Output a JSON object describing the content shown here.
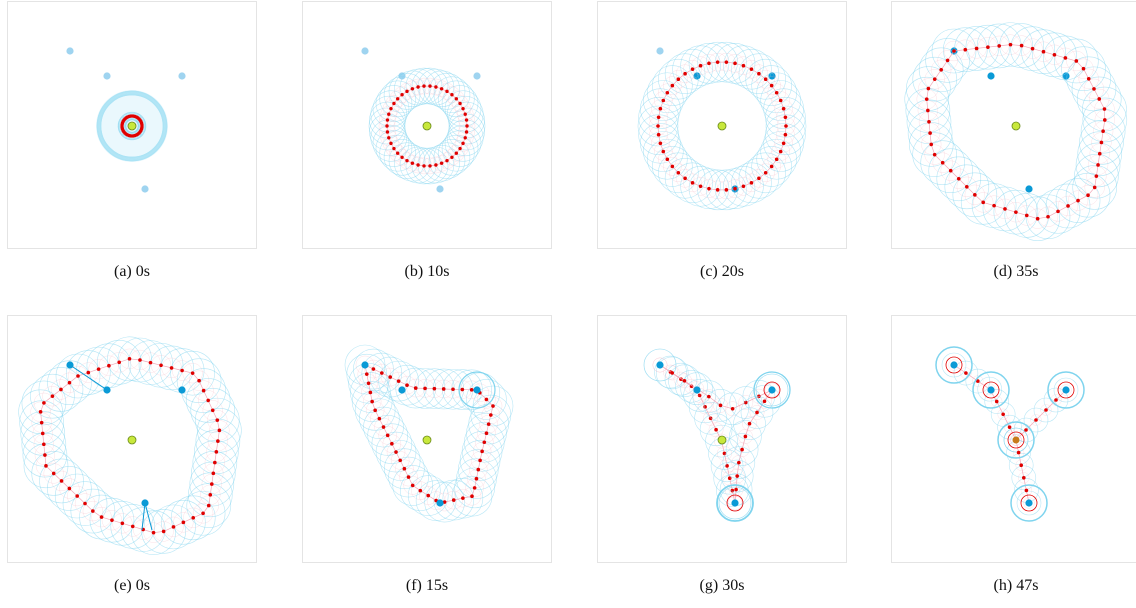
{
  "panels": [
    {
      "caption": "(a)  0s",
      "scene": "start-small"
    },
    {
      "caption": "(b)  10s",
      "scene": "expand-1"
    },
    {
      "caption": "(c)  20s",
      "scene": "expand-2"
    },
    {
      "caption": "(d)  35s",
      "scene": "expand-3"
    },
    {
      "caption": "(e)  0s",
      "scene": "contract-0"
    },
    {
      "caption": "(f)  15s",
      "scene": "contract-1"
    },
    {
      "caption": "(g)  30s",
      "scene": "contract-2"
    },
    {
      "caption": "(h)  47s",
      "scene": "contract-3"
    }
  ],
  "colors": {
    "robot_dot": "#e00000",
    "sensing_circle": "#7fd4ee",
    "target_blue": "#0a9ad6",
    "target_faded": "#9fd4f0",
    "center_green": "#c8e83c",
    "connector_pink": "#f2a8b8"
  }
}
